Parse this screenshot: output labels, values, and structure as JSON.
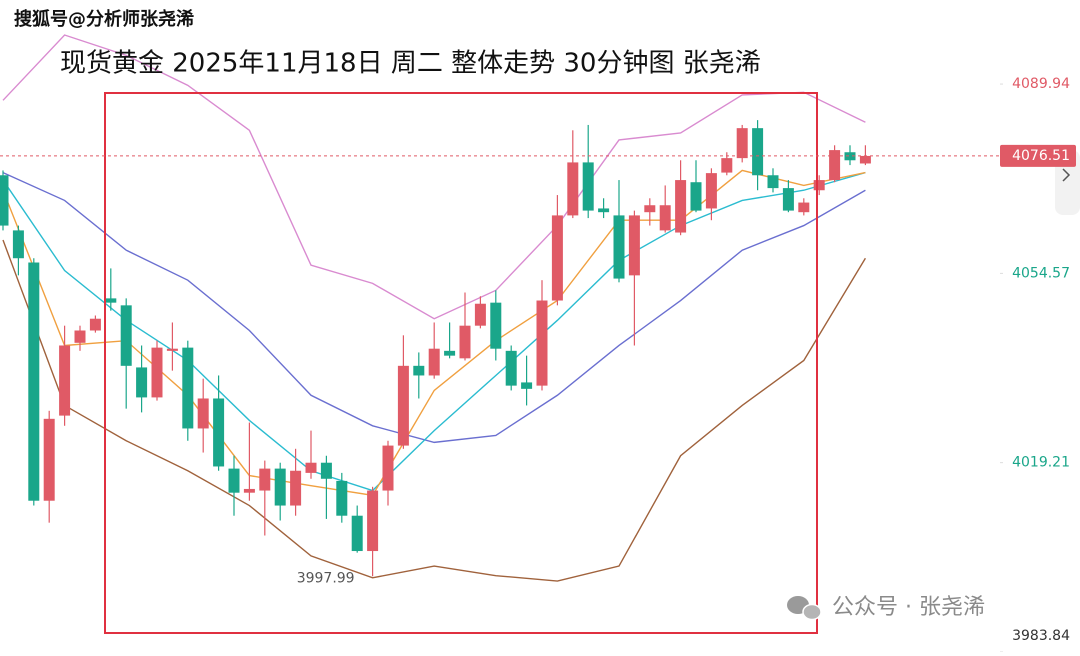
{
  "chart_data": {
    "type": "candlestick",
    "watermark_top": "搜狐号@分析师张尧浠",
    "title": "现货黄金 2025年11月18日 周二 整体走势 30分钟图 张尧浠",
    "watermark_bottom": "公众号 · 张尧浠",
    "ylim": [
      3983.84,
      4105.64
    ],
    "yticks": [
      3983.84,
      4019.21,
      4054.57,
      4089.94
    ],
    "ytick_colors": [
      "#333333",
      "#1aa68a",
      "#1aa68a",
      "#e05a66"
    ],
    "up_color": "#e05a66",
    "down_color": "#1aa68a",
    "last_price": 4076.51,
    "low_label": {
      "value": 3997.99,
      "index": 24
    },
    "ohlc": [
      [
        4072.9,
        4073.8,
        4062.6,
        4063.5
      ],
      [
        4062.6,
        4063.5,
        4054.2,
        4057.4
      ],
      [
        4056.6,
        4057.4,
        4011.2,
        4012.1
      ],
      [
        4012.1,
        4028.9,
        4008.0,
        4027.4
      ],
      [
        4028.0,
        4044.8,
        4026.1,
        4041.1
      ],
      [
        4041.6,
        4044.8,
        4040.1,
        4043.9
      ],
      [
        4043.9,
        4046.7,
        4043.5,
        4046.1
      ],
      [
        4049.9,
        4055.5,
        4047.6,
        4049.1
      ],
      [
        4048.6,
        4049.9,
        4029.3,
        4037.3
      ],
      [
        4037.0,
        4041.1,
        4028.6,
        4031.4
      ],
      [
        4031.4,
        4042.0,
        4030.8,
        4040.7
      ],
      [
        4040.1,
        4045.4,
        4036.4,
        4040.5
      ],
      [
        4040.7,
        4042.0,
        4023.3,
        4025.6
      ],
      [
        4025.6,
        4034.9,
        4021.1,
        4031.2
      ],
      [
        4031.2,
        4035.5,
        4017.7,
        4018.5
      ],
      [
        4018.1,
        4020.5,
        4009.3,
        4013.6
      ],
      [
        4013.6,
        4026.7,
        4012.1,
        4014.3
      ],
      [
        4014.0,
        4019.6,
        4005.6,
        4018.1
      ],
      [
        4018.1,
        4019.2,
        4008.4,
        4011.2
      ],
      [
        4011.2,
        4021.8,
        4009.3,
        4017.7
      ],
      [
        4017.3,
        4025.2,
        4016.2,
        4019.2
      ],
      [
        4019.2,
        4020.5,
        4008.7,
        4016.2
      ],
      [
        4015.8,
        4017.3,
        4008.0,
        4009.3
      ],
      [
        4009.3,
        4011.2,
        4002.4,
        4002.7
      ],
      [
        4002.7,
        4014.7,
        3997.99,
        4014.0
      ],
      [
        4014.0,
        4023.3,
        4011.2,
        4022.4
      ],
      [
        4022.4,
        4043.0,
        4021.8,
        4037.3
      ],
      [
        4037.3,
        4039.8,
        4031.2,
        4035.5
      ],
      [
        4035.5,
        4045.4,
        4034.9,
        4040.5
      ],
      [
        4040.1,
        4045.4,
        4038.7,
        4039.2
      ],
      [
        4038.7,
        4051.0,
        4038.3,
        4044.8
      ],
      [
        4044.8,
        4050.3,
        4044.3,
        4048.9
      ],
      [
        4049.1,
        4051.4,
        4038.3,
        4040.5
      ],
      [
        4040.1,
        4041.1,
        4032.7,
        4033.6
      ],
      [
        4034.2,
        4039.2,
        4029.9,
        4033.0
      ],
      [
        4033.6,
        4053.3,
        4032.7,
        4049.5
      ],
      [
        4049.5,
        4069.2,
        4048.6,
        4065.4
      ],
      [
        4065.4,
        4081.3,
        4064.9,
        4075.3
      ],
      [
        4075.3,
        4082.3,
        4064.9,
        4066.3
      ],
      [
        4066.7,
        4068.6,
        4064.9,
        4066.0
      ],
      [
        4065.4,
        4072.0,
        4052.9,
        4053.6
      ],
      [
        4054.2,
        4066.3,
        4041.1,
        4065.4
      ],
      [
        4066.0,
        4068.6,
        4063.5,
        4067.3
      ],
      [
        4062.6,
        4071.0,
        4062.2,
        4067.3
      ],
      [
        4062.2,
        4075.7,
        4061.7,
        4072.0
      ],
      [
        4071.6,
        4075.7,
        4066.0,
        4066.3
      ],
      [
        4066.7,
        4074.2,
        4064.5,
        4073.3
      ],
      [
        4073.4,
        4077.2,
        4072.9,
        4076.1
      ],
      [
        4076.1,
        4082.3,
        4075.3,
        4081.7
      ],
      [
        4081.7,
        4083.2,
        4070.1,
        4072.9
      ],
      [
        4072.9,
        4074.2,
        4069.7,
        4070.5
      ],
      [
        4070.5,
        4072.0,
        4066.0,
        4066.3
      ],
      [
        4066.0,
        4068.6,
        4065.4,
        4067.8
      ],
      [
        4070.1,
        4072.9,
        4069.2,
        4072.0
      ],
      [
        4072.0,
        4078.5,
        4071.6,
        4077.6
      ],
      [
        4077.2,
        4078.5,
        4074.8,
        4075.7
      ],
      [
        4075.1,
        4078.5,
        4074.8,
        4076.51
      ]
    ],
    "overlays": [
      {
        "color": "#d98bd0",
        "x": [
          0,
          4,
          8,
          12,
          16,
          20,
          24,
          28,
          32,
          36,
          40,
          44,
          48,
          52,
          56
        ],
        "values": [
          4086.9,
          4099.1,
          4095.3,
          4089.7,
          4081.3,
          4056.1,
          4052.7,
          4046.1,
          4051.4,
          4063.5,
          4079.5,
          4080.8,
          4087.9,
          4088.4,
          4082.8
        ]
      },
      {
        "color": "#6a6fd0",
        "x": [
          0,
          4,
          8,
          12,
          16,
          20,
          24,
          28,
          32,
          36,
          40,
          44,
          48,
          52,
          56
        ],
        "values": [
          4073.4,
          4068.2,
          4058.9,
          4053.3,
          4043.9,
          4031.8,
          4026.1,
          4023.0,
          4024.3,
          4031.8,
          4041.1,
          4049.5,
          4058.9,
          4063.5,
          4070.1
        ]
      },
      {
        "color": "#a0623c",
        "x": [
          0,
          4,
          8,
          12,
          16,
          20,
          24,
          28,
          32,
          36,
          40,
          44,
          48,
          52,
          56
        ],
        "values": [
          4060.8,
          4029.9,
          4023.3,
          4017.7,
          4011.2,
          4001.8,
          3997.7,
          3999.9,
          3998.1,
          3997.1,
          3999.9,
          4020.5,
          4029.9,
          4038.3,
          4057.4
        ]
      },
      {
        "color": "#2bbcd0",
        "x": [
          0,
          4,
          8,
          12,
          16,
          20,
          24,
          28,
          32,
          36,
          40,
          44,
          48,
          52,
          56
        ],
        "values": [
          4072.0,
          4055.1,
          4045.8,
          4038.3,
          4027.1,
          4017.7,
          4014.0,
          4025.2,
          4035.5,
          4045.8,
          4057.0,
          4063.5,
          4068.2,
          4070.1,
          4073.4
        ]
      },
      {
        "color": "#f0a040",
        "x": [
          0,
          4,
          8,
          12,
          16,
          20,
          24,
          28,
          32,
          36,
          40,
          44,
          48,
          52,
          56
        ],
        "values": [
          4070.1,
          4041.1,
          4042.0,
          4031.8,
          4016.8,
          4014.9,
          4013.1,
          4032.7,
          4042.0,
          4049.5,
          4064.5,
          4064.5,
          4073.8,
          4071.0,
          4073.4
        ]
      }
    ]
  }
}
